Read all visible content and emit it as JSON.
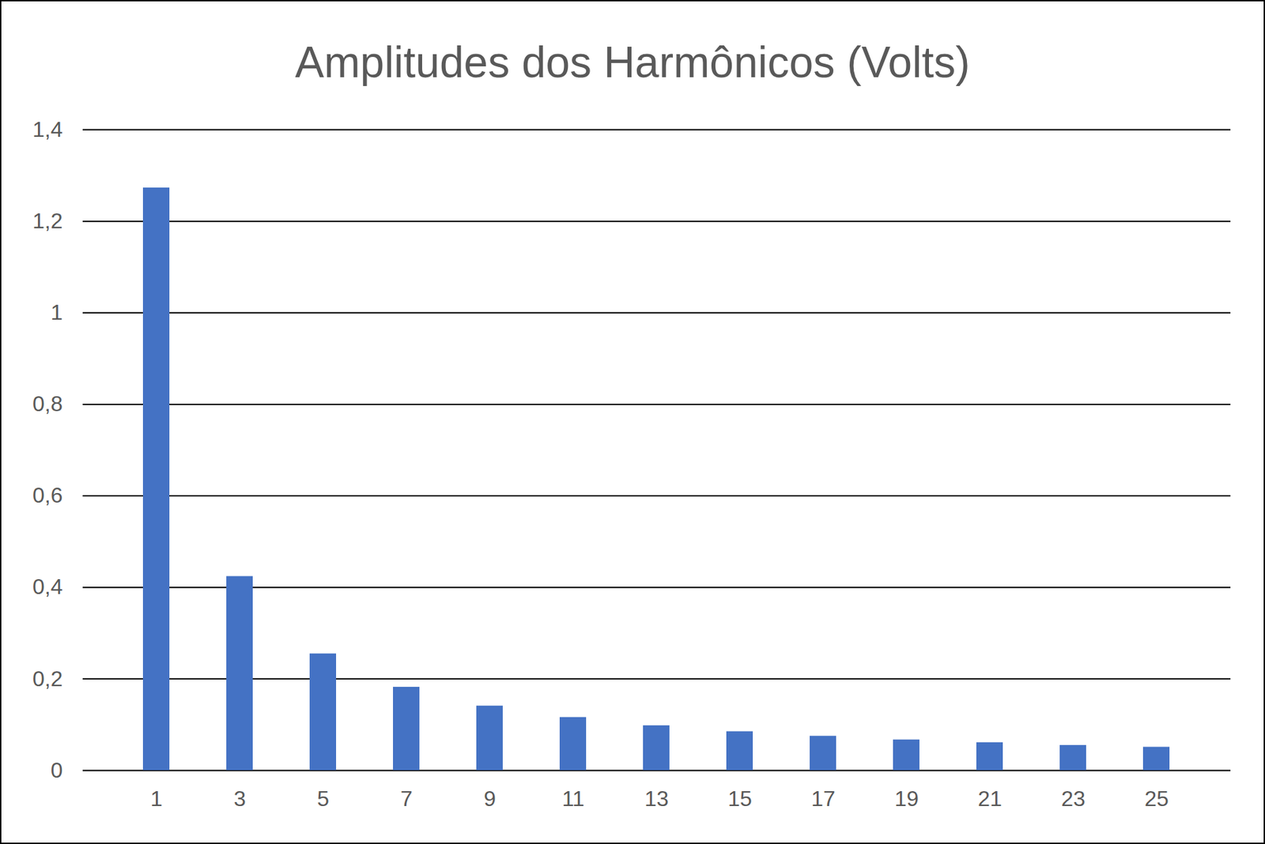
{
  "chart_data": {
    "type": "bar",
    "title": "Amplitudes dos Harmônicos (Volts)",
    "categories": [
      "1",
      "3",
      "5",
      "7",
      "9",
      "11",
      "13",
      "15",
      "17",
      "19",
      "21",
      "23",
      "25"
    ],
    "values": [
      1.273,
      0.424,
      0.255,
      0.182,
      0.141,
      0.116,
      0.098,
      0.085,
      0.075,
      0.067,
      0.061,
      0.055,
      0.051
    ],
    "color": "#4472c4",
    "ylim": [
      0,
      1.4
    ],
    "yticks": [
      0,
      {
        "value": 0.2,
        "label": "0,2"
      },
      {
        "value": 0.4,
        "label": "0,4"
      },
      {
        "value": 0.6,
        "label": "0,6"
      },
      {
        "value": 0.8,
        "label": "0,8"
      },
      1,
      {
        "value": 1.2,
        "label": "1,2"
      },
      {
        "value": 1.4,
        "label": "1,4"
      }
    ],
    "grid": true
  }
}
